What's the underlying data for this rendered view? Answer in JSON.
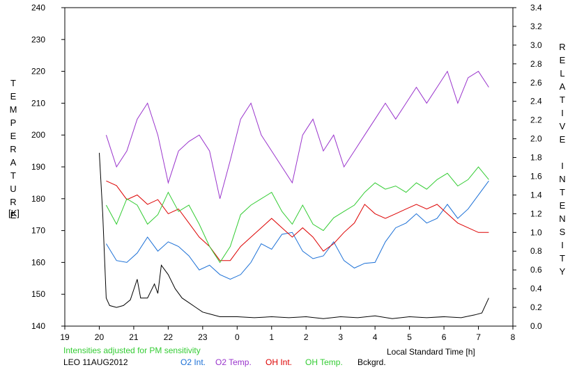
{
  "chart_data": {
    "type": "line",
    "ylabel_left_letters": [
      "T",
      "E",
      "M",
      "P",
      "E",
      "R",
      "A",
      "T",
      "U",
      "R",
      "E"
    ],
    "ylabel_left_unit": "[K]",
    "ylabel_right_letters_1": [
      "R",
      "E",
      "L",
      "A",
      "T",
      "I",
      "V",
      "E"
    ],
    "ylabel_right_letters_2": [
      "I",
      "N",
      "T",
      "E",
      "N",
      "S",
      "I",
      "T",
      "Y"
    ],
    "xlabel": "Local Standard Time [h]",
    "note": "Intensities adjusted for PM sensitivity",
    "station_date": "LEO 11AUG2012",
    "x_ticks": [
      "19",
      "20",
      "21",
      "22",
      "23",
      "0",
      "1",
      "2",
      "3",
      "4",
      "5",
      "6",
      "7",
      "8"
    ],
    "y_left_ticks": [
      "140",
      "150",
      "160",
      "170",
      "180",
      "190",
      "200",
      "210",
      "220",
      "230",
      "240"
    ],
    "y_right_ticks": [
      "0.0",
      "0.2",
      "0.4",
      "0.6",
      "0.8",
      "1.0",
      "1.2",
      "1.4",
      "1.6",
      "1.8",
      "2.0",
      "2.2",
      "2.4",
      "2.6",
      "2.8",
      "3.0",
      "3.2",
      "3.4"
    ],
    "xlim_hours_after_19": [
      0,
      13
    ],
    "ylim_left": [
      140,
      240
    ],
    "ylim_right": [
      0.0,
      3.4
    ],
    "series": [
      {
        "name": "O2 Int.",
        "color": "#1a6fd6",
        "axis": "right",
        "x": [
          1.2,
          1.5,
          1.8,
          2.1,
          2.4,
          2.7,
          3.0,
          3.3,
          3.6,
          3.9,
          4.2,
          4.5,
          4.8,
          5.1,
          5.4,
          5.7,
          6.0,
          6.3,
          6.6,
          6.9,
          7.2,
          7.5,
          7.8,
          8.1,
          8.4,
          8.7,
          9.0,
          9.3,
          9.6,
          9.9,
          10.2,
          10.5,
          10.8,
          11.1,
          11.4,
          11.7,
          12.0,
          12.3
        ],
        "y": [
          0.88,
          0.7,
          0.68,
          0.78,
          0.95,
          0.8,
          0.9,
          0.85,
          0.75,
          0.6,
          0.65,
          0.55,
          0.5,
          0.55,
          0.68,
          0.88,
          0.82,
          0.98,
          1.0,
          0.8,
          0.72,
          0.75,
          0.9,
          0.7,
          0.62,
          0.67,
          0.68,
          0.9,
          1.05,
          1.1,
          1.2,
          1.1,
          1.15,
          1.3,
          1.15,
          1.25,
          1.4,
          1.55
        ]
      },
      {
        "name": "O2 Temp.",
        "color": "#9933cc",
        "axis": "left",
        "x": [
          1.2,
          1.5,
          1.8,
          2.1,
          2.4,
          2.7,
          3.0,
          3.3,
          3.6,
          3.9,
          4.2,
          4.5,
          4.8,
          5.1,
          5.4,
          5.7,
          6.0,
          6.3,
          6.6,
          6.9,
          7.2,
          7.5,
          7.8,
          8.1,
          8.4,
          8.7,
          9.0,
          9.3,
          9.6,
          9.9,
          10.2,
          10.5,
          10.8,
          11.1,
          11.4,
          11.7,
          12.0,
          12.3
        ],
        "y": [
          200,
          190,
          195,
          205,
          210,
          200,
          185,
          195,
          198,
          200,
          195,
          180,
          192,
          205,
          210,
          200,
          195,
          190,
          185,
          200,
          205,
          195,
          200,
          190,
          195,
          200,
          205,
          210,
          205,
          210,
          215,
          210,
          215,
          220,
          210,
          218,
          220,
          215
        ]
      },
      {
        "name": "OH Int.",
        "color": "#dd0000",
        "axis": "right",
        "x": [
          1.2,
          1.5,
          1.8,
          2.1,
          2.4,
          2.7,
          3.0,
          3.3,
          3.6,
          3.9,
          4.2,
          4.5,
          4.8,
          5.1,
          5.4,
          5.7,
          6.0,
          6.3,
          6.6,
          6.9,
          7.2,
          7.5,
          7.8,
          8.1,
          8.4,
          8.7,
          9.0,
          9.3,
          9.6,
          9.9,
          10.2,
          10.5,
          10.8,
          11.1,
          11.4,
          11.7,
          12.0,
          12.3
        ],
        "y": [
          1.55,
          1.5,
          1.35,
          1.4,
          1.3,
          1.35,
          1.2,
          1.25,
          1.1,
          0.95,
          0.85,
          0.7,
          0.7,
          0.85,
          0.95,
          1.05,
          1.15,
          1.05,
          0.95,
          1.05,
          0.95,
          0.8,
          0.88,
          1.0,
          1.1,
          1.3,
          1.2,
          1.15,
          1.2,
          1.25,
          1.3,
          1.25,
          1.3,
          1.2,
          1.1,
          1.05,
          1.0,
          1.0
        ]
      },
      {
        "name": "OH Temp.",
        "color": "#33cc33",
        "axis": "left",
        "x": [
          1.2,
          1.5,
          1.8,
          2.1,
          2.4,
          2.7,
          3.0,
          3.3,
          3.6,
          3.9,
          4.2,
          4.5,
          4.8,
          5.1,
          5.4,
          5.7,
          6.0,
          6.3,
          6.6,
          6.9,
          7.2,
          7.5,
          7.8,
          8.1,
          8.4,
          8.7,
          9.0,
          9.3,
          9.6,
          9.9,
          10.2,
          10.5,
          10.8,
          11.1,
          11.4,
          11.7,
          12.0,
          12.3
        ],
        "y": [
          178,
          172,
          180,
          178,
          172,
          175,
          182,
          176,
          178,
          172,
          165,
          160,
          165,
          175,
          178,
          180,
          182,
          176,
          172,
          178,
          172,
          170,
          174,
          176,
          178,
          182,
          185,
          183,
          184,
          182,
          185,
          183,
          186,
          188,
          184,
          186,
          190,
          186
        ]
      },
      {
        "name": "Bckgrd.",
        "color": "#000000",
        "axis": "right",
        "x": [
          1.0,
          1.1,
          1.2,
          1.3,
          1.5,
          1.7,
          1.9,
          2.1,
          2.2,
          2.4,
          2.6,
          2.7,
          2.8,
          3.0,
          3.2,
          3.4,
          3.6,
          3.8,
          4.0,
          4.2,
          4.5,
          5.0,
          5.5,
          6.0,
          6.5,
          7.0,
          7.5,
          8.0,
          8.5,
          9.0,
          9.5,
          10.0,
          10.5,
          11.0,
          11.5,
          11.9,
          12.1,
          12.3
        ],
        "y": [
          1.85,
          1.2,
          0.3,
          0.22,
          0.2,
          0.22,
          0.28,
          0.5,
          0.3,
          0.3,
          0.45,
          0.35,
          0.65,
          0.55,
          0.4,
          0.3,
          0.25,
          0.2,
          0.15,
          0.13,
          0.1,
          0.1,
          0.09,
          0.1,
          0.09,
          0.1,
          0.08,
          0.1,
          0.09,
          0.11,
          0.08,
          0.1,
          0.09,
          0.1,
          0.09,
          0.12,
          0.14,
          0.3
        ]
      }
    ]
  },
  "legend": [
    {
      "label": "O2 Int.",
      "color": "#1a6fd6"
    },
    {
      "label": "O2 Temp.",
      "color": "#9933cc"
    },
    {
      "label": "OH Int.",
      "color": "#dd0000"
    },
    {
      "label": "OH Temp.",
      "color": "#33cc33"
    },
    {
      "label": "Bckgrd.",
      "color": "#000000"
    }
  ]
}
